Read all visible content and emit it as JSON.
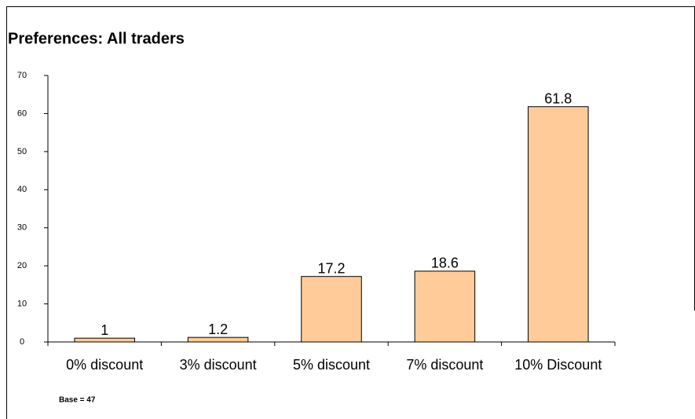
{
  "chart_data": {
    "type": "bar",
    "title": "Preferences: All traders",
    "categories": [
      "0% discount",
      "3% discount",
      "5% discount",
      "7% discount",
      "10% Discount"
    ],
    "values": [
      1,
      1.2,
      17.2,
      18.6,
      61.8
    ],
    "color": "#ffcc99",
    "ylim": [
      0,
      70
    ],
    "yticks": [
      0,
      10,
      20,
      30,
      40,
      50,
      60,
      70
    ],
    "annotation": "Base = 47"
  }
}
